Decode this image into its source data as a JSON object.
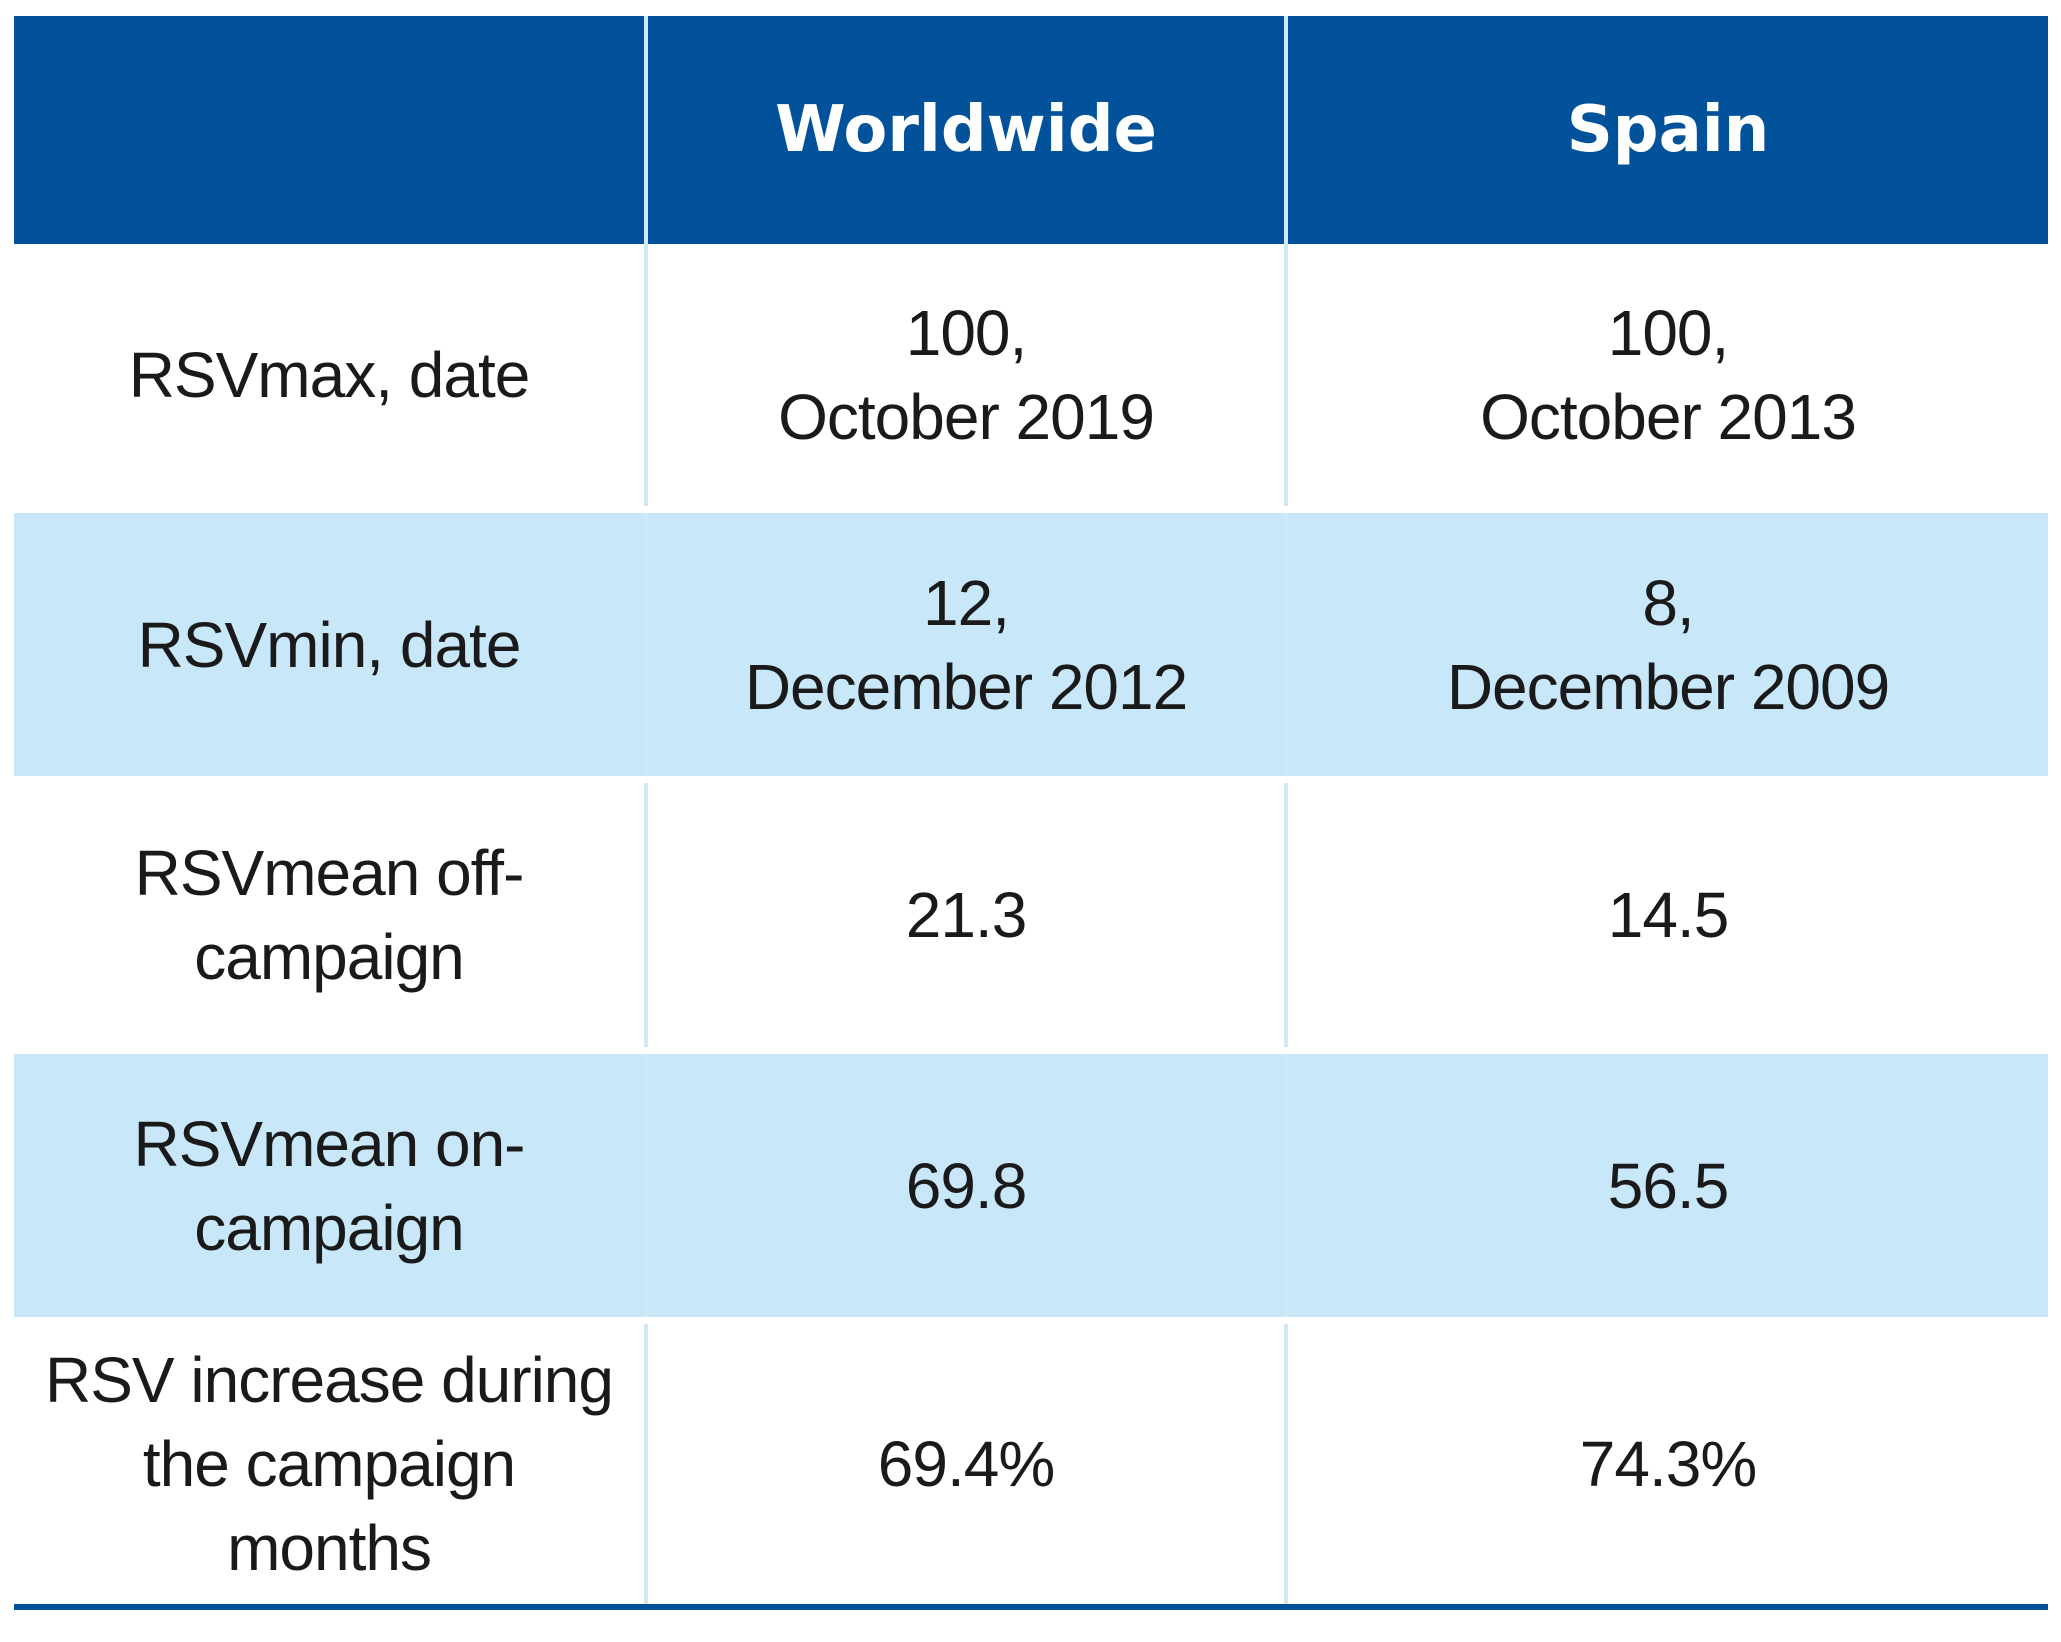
{
  "table": {
    "headers": [
      "",
      "Worldwide",
      "Spain"
    ],
    "rows": [
      {
        "label": [
          "RSVmax, date"
        ],
        "worldwide": [
          "100,",
          "October 2019"
        ],
        "spain": [
          "100,",
          "October 2013"
        ]
      },
      {
        "label": [
          "RSVmin, date"
        ],
        "worldwide": [
          "12,",
          "December 2012"
        ],
        "spain": [
          "8,",
          "December 2009"
        ]
      },
      {
        "label": [
          "RSVmean off-",
          "campaign"
        ],
        "worldwide": [
          "21.3"
        ],
        "spain": [
          "14.5"
        ]
      },
      {
        "label": [
          "RSVmean on-",
          "campaign"
        ],
        "worldwide": [
          "69.8"
        ],
        "spain": [
          "56.5"
        ]
      },
      {
        "label": [
          "RSV increase during",
          "the campaign",
          "months"
        ],
        "worldwide": [
          "69.4%"
        ],
        "spain": [
          "74.3%"
        ]
      }
    ]
  },
  "colors": {
    "header_bg": "#02529b",
    "header_text": "#ffffff",
    "stripe_bg": "#c8e8fa",
    "body_text": "#1a1a1a"
  }
}
